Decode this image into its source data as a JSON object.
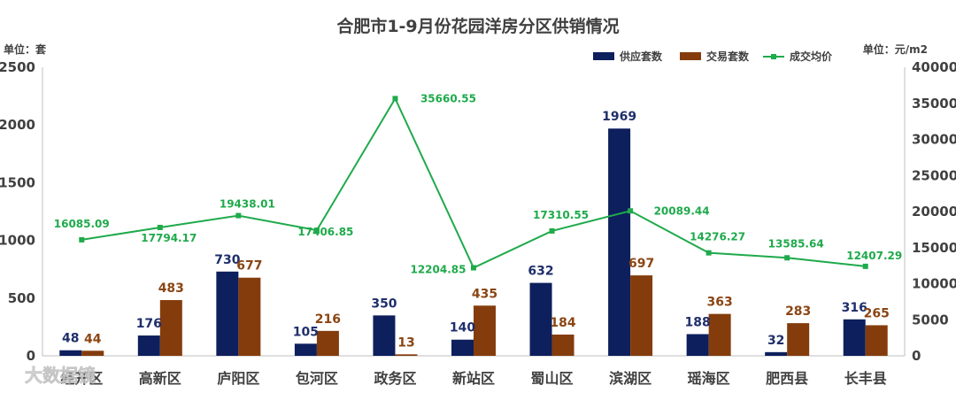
{
  "chart_data": {
    "type": "bar",
    "title": "合肥市1-9月份花园洋房分区供销情况",
    "left_unit": "单位：套",
    "right_unit": "单位：元/m2",
    "categories": [
      "经开区",
      "高新区",
      "庐阳区",
      "包河区",
      "政务区",
      "新站区",
      "蜀山区",
      "滨湖区",
      "瑶海区",
      "肥西县",
      "长丰县"
    ],
    "series": [
      {
        "name": "供应套数",
        "type": "bar",
        "axis": "left",
        "color": "#0d1f5c",
        "values": [
          48,
          176,
          730,
          105,
          350,
          140,
          632,
          1969,
          188,
          32,
          316
        ]
      },
      {
        "name": "交易套数",
        "type": "bar",
        "axis": "left",
        "color": "#843c0c",
        "values": [
          44,
          483,
          677,
          216,
          13,
          435,
          184,
          697,
          363,
          283,
          265
        ]
      },
      {
        "name": "成交均价",
        "type": "line",
        "axis": "right",
        "color": "#1faa4b",
        "values": [
          16085.09,
          17794.17,
          19438.01,
          17406.85,
          35660.55,
          12204.85,
          17310.55,
          20089.44,
          14276.27,
          13585.64,
          12407.29
        ],
        "labels": [
          "16085.09",
          "17794.17",
          "19438.01",
          "17406.85",
          "35660.55",
          "12204.85",
          "17310.55",
          "20089.44",
          "14276.27",
          "13585.64",
          "12407.29"
        ]
      }
    ],
    "y_left": {
      "min": 0,
      "max": 2500,
      "ticks": [
        "0",
        "500",
        "1000",
        "1500",
        "2000",
        "2500"
      ]
    },
    "y_right": {
      "min": 0,
      "max": 40000,
      "ticks": [
        "0",
        "5000",
        "10000",
        "15000",
        "20000",
        "25000",
        "30000",
        "35000",
        "40000"
      ]
    },
    "legend_position": "top-right",
    "grid": false
  },
  "watermark": "大数据镜"
}
